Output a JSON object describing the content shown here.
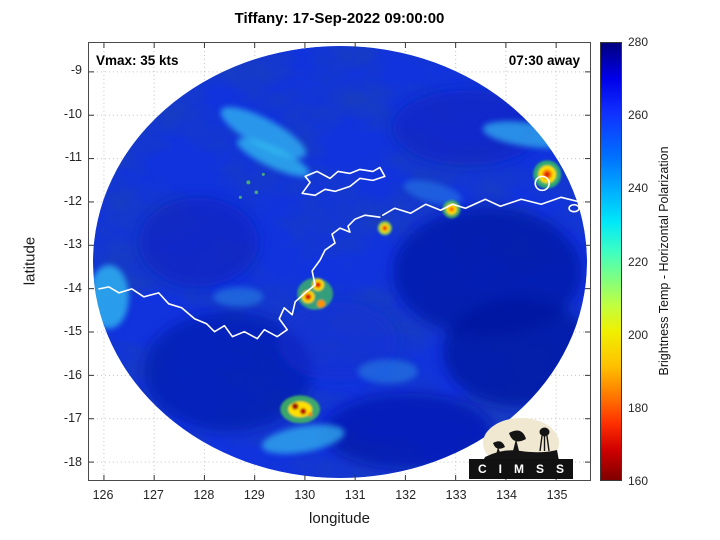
{
  "title": "Tiffany: 17-Sep-2022 09:00:00",
  "annotations": {
    "vmax": "Vmax: 35 kts",
    "eta": "07:30 away"
  },
  "axes": {
    "x_label": "longitude",
    "y_label": "latitude",
    "x_ticks": [
      "126",
      "127",
      "128",
      "129",
      "130",
      "131",
      "132",
      "133",
      "134",
      "135"
    ],
    "y_ticks": [
      "-9",
      "-10",
      "-11",
      "-12",
      "-13",
      "-14",
      "-15",
      "-16",
      "-17",
      "-18"
    ]
  },
  "colorbar": {
    "label": "Brightness Temp - Horizontal Polarization",
    "ticks": [
      "280",
      "260",
      "240",
      "220",
      "200",
      "180",
      "160"
    ],
    "min": 160,
    "max": 280
  },
  "logo": {
    "text": "C I M S S"
  },
  "chart_data": {
    "type": "heatmap",
    "title": "Tiffany: 17-Sep-2022 09:00:00",
    "xlabel": "longitude",
    "ylabel": "latitude",
    "xlim": [
      125.7,
      135.7
    ],
    "ylim": [
      -18.4,
      -8.35
    ],
    "grid": true,
    "colorbar": {
      "label": "Brightness Temp - Horizontal Polarization",
      "range": [
        160,
        280
      ],
      "tick_step": 20,
      "colormap": "jet reversed (280 K = dark blue, 160 K = dark red)"
    },
    "storm": {
      "name": "Tiffany",
      "datetime": "17-Sep-2022 09:00:00",
      "vmax_kts": 35,
      "eta_label": "07:30 away"
    },
    "swath": {
      "shape": "circular microwave overpass on white background",
      "center": [
        130.65,
        -13.4
      ],
      "radius_deg": 4.95,
      "typical_background_temp_K": 265
    },
    "overlays": [
      "white coastlines of northern Australia (Kimberley coast, Joseph Bonaparte Gulf, Darwin, Tiwi Islands, Arnhem Land north coast)",
      "CIMSS logo bottom-right"
    ],
    "cold_convective_features": [
      {
        "lon": 134.8,
        "lat": -11.4,
        "min_temp_K": 175
      },
      {
        "lon": 132.9,
        "lat": -12.2,
        "min_temp_K": 200
      },
      {
        "lon": 131.6,
        "lat": -12.6,
        "min_temp_K": 185
      },
      {
        "lon": 130.35,
        "lat": -13.9,
        "min_temp_K": 175
      },
      {
        "lon": 130.1,
        "lat": -14.2,
        "min_temp_K": 172
      },
      {
        "lon": 129.95,
        "lat": -16.85,
        "min_temp_K": 163
      }
    ]
  }
}
